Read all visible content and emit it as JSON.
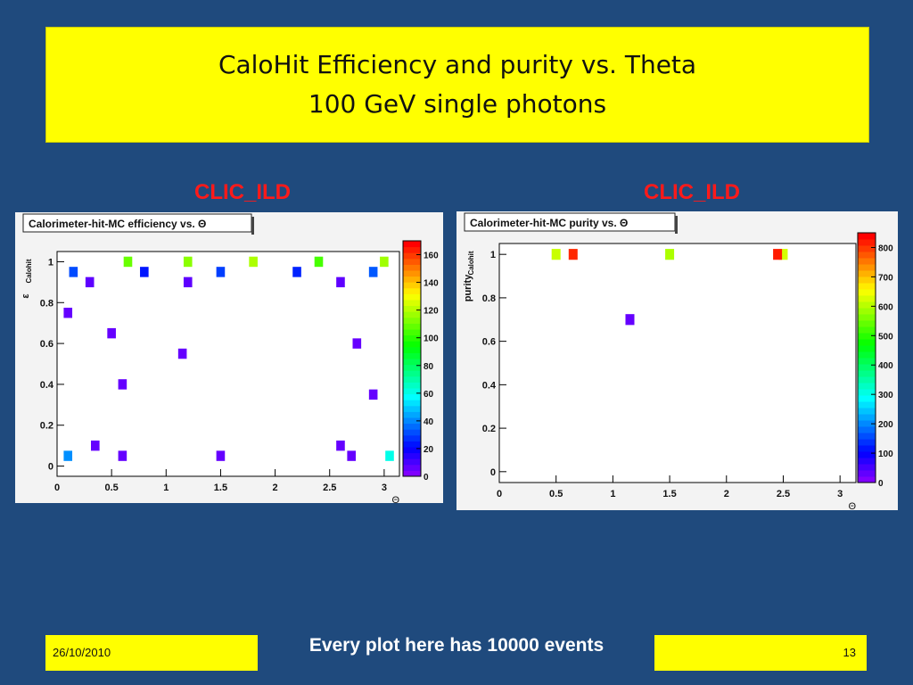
{
  "slide": {
    "title_line1": "CaloHit Efficiency and purity vs. Theta",
    "title_line2": "100 GeV single photons",
    "footer_date": "26/10/2010",
    "footer_note": "Every plot here has 10000 events",
    "page_number": "13",
    "colors": {
      "background": "#1f4a7d",
      "title_box": "#ffff00",
      "plot_label": "#ff1a1a"
    }
  },
  "plots": {
    "left_label": "CLIC_ILD",
    "right_label": "CLIC_ILD"
  },
  "chart_data": [
    {
      "type": "heatmap",
      "title": "Calorimeter-hit-MC efficiency vs. Θ",
      "xlabel": "Θ",
      "ylabel": "ε",
      "ylabel_sub": "Calohit",
      "xlim": [
        0,
        3.14
      ],
      "ylim": [
        -0.05,
        1.05
      ],
      "xticks": [
        "0",
        "0.5",
        "1",
        "1.5",
        "2",
        "2.5",
        "3"
      ],
      "yticks": [
        "0",
        "0.2",
        "0.4",
        "0.6",
        "0.8",
        "1"
      ],
      "colorbar_ticks": [
        "0",
        "20",
        "40",
        "60",
        "80",
        "100",
        "120",
        "140",
        "160"
      ],
      "colorbar_range": [
        0,
        170
      ],
      "bin_size": [
        0.0785,
        0.05
      ],
      "cells": [
        {
          "x": 0.65,
          "y": 1.0,
          "v": 110
        },
        {
          "x": 1.2,
          "y": 1.0,
          "v": 115
        },
        {
          "x": 1.8,
          "y": 1.0,
          "v": 120
        },
        {
          "x": 2.4,
          "y": 1.0,
          "v": 105
        },
        {
          "x": 3.0,
          "y": 1.0,
          "v": 118
        },
        {
          "x": 0.15,
          "y": 0.95,
          "v": 30
        },
        {
          "x": 0.8,
          "y": 0.95,
          "v": 22
        },
        {
          "x": 1.5,
          "y": 0.95,
          "v": 28
        },
        {
          "x": 2.2,
          "y": 0.95,
          "v": 24
        },
        {
          "x": 2.9,
          "y": 0.95,
          "v": 32
        },
        {
          "x": 0.3,
          "y": 0.9,
          "v": 5
        },
        {
          "x": 1.2,
          "y": 0.9,
          "v": 5
        },
        {
          "x": 2.6,
          "y": 0.9,
          "v": 5
        },
        {
          "x": 0.1,
          "y": 0.75,
          "v": 4
        },
        {
          "x": 0.5,
          "y": 0.65,
          "v": 4
        },
        {
          "x": 1.15,
          "y": 0.55,
          "v": 4
        },
        {
          "x": 2.75,
          "y": 0.6,
          "v": 4
        },
        {
          "x": 0.6,
          "y": 0.4,
          "v": 4
        },
        {
          "x": 2.9,
          "y": 0.35,
          "v": 4
        },
        {
          "x": 0.35,
          "y": 0.1,
          "v": 4
        },
        {
          "x": 2.6,
          "y": 0.1,
          "v": 4
        },
        {
          "x": 0.1,
          "y": 0.05,
          "v": 40
        },
        {
          "x": 0.6,
          "y": 0.05,
          "v": 4
        },
        {
          "x": 1.5,
          "y": 0.05,
          "v": 4
        },
        {
          "x": 2.7,
          "y": 0.05,
          "v": 4
        },
        {
          "x": 3.05,
          "y": 0.05,
          "v": 60
        }
      ]
    },
    {
      "type": "heatmap",
      "title": "Calorimeter-hit-MC purity vs. Θ",
      "xlabel": "Θ",
      "ylabel": "purity",
      "ylabel_sub": "Calohit",
      "xlim": [
        0,
        3.14
      ],
      "ylim": [
        -0.05,
        1.05
      ],
      "xticks": [
        "0",
        "0.5",
        "1",
        "1.5",
        "2",
        "2.5",
        "3"
      ],
      "yticks": [
        "0",
        "0.2",
        "0.4",
        "0.6",
        "0.8",
        "1"
      ],
      "colorbar_ticks": [
        "0",
        "100",
        "200",
        "300",
        "400",
        "500",
        "600",
        "700",
        "800"
      ],
      "colorbar_range": [
        0,
        850
      ],
      "bin_size": [
        0.0785,
        0.05
      ],
      "cells": [
        {
          "x": 0.5,
          "y": 1.0,
          "v": 620
        },
        {
          "x": 1.5,
          "y": 1.0,
          "v": 600
        },
        {
          "x": 2.5,
          "y": 1.0,
          "v": 630
        },
        {
          "x": 0.65,
          "y": 1.0,
          "v": 820
        },
        {
          "x": 2.45,
          "y": 1.0,
          "v": 830
        },
        {
          "x": 1.15,
          "y": 0.7,
          "v": 20
        }
      ]
    }
  ]
}
